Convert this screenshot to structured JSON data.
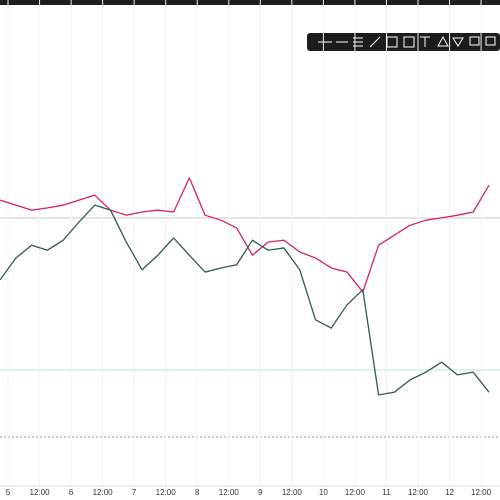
{
  "chart_data": {
    "type": "line",
    "x": [
      4.875,
      5.125,
      5.375,
      5.625,
      5.875,
      6.125,
      6.375,
      6.625,
      6.875,
      7.125,
      7.375,
      7.625,
      7.875,
      8.125,
      8.375,
      8.625,
      8.875,
      9.125,
      9.375,
      9.625,
      9.875,
      10.125,
      10.375,
      10.625,
      10.875,
      11.125,
      11.375,
      11.625,
      11.875,
      12.125,
      12.375,
      12.625
    ],
    "series": [
      {
        "color": "#d6245f",
        "values": [
          62.6,
          61.5,
          60.4,
          60.9,
          61.5,
          62.6,
          63.7,
          60.4,
          59.3,
          60.0,
          60.4,
          60.0,
          67.5,
          59.3,
          58.2,
          56.5,
          50.5,
          53.4,
          53.8,
          51.2,
          49.9,
          47.7,
          46.8,
          42.4,
          52.7,
          54.9,
          57.1,
          58.2,
          58.7,
          59.3,
          60.0,
          65.9
        ]
      },
      {
        "color": "#2f5d4a",
        "values": [
          45.1,
          49.9,
          52.7,
          51.6,
          53.8,
          57.8,
          61.5,
          60.4,
          53.4,
          47.3,
          50.5,
          54.3,
          50.5,
          46.8,
          47.7,
          48.4,
          53.8,
          51.6,
          52.1,
          47.3,
          36.3,
          34.5,
          39.6,
          42.9,
          19.8,
          20.4,
          23.1,
          24.8,
          27.0,
          24.2,
          24.8,
          20.4
        ]
      }
    ],
    "xlim": [
      4.873,
      12.8
    ],
    "ylim": [
      0,
      100
    ],
    "xticks": [
      {
        "value": 5,
        "label": "5"
      },
      {
        "value": 5.5,
        "label": "12:00"
      },
      {
        "value": 6,
        "label": "6"
      },
      {
        "value": 6.5,
        "label": "12:00"
      },
      {
        "value": 7,
        "label": "7"
      },
      {
        "value": 7.5,
        "label": "12:00"
      },
      {
        "value": 8,
        "label": "8"
      },
      {
        "value": 8.5,
        "label": "12:00"
      },
      {
        "value": 9,
        "label": "9"
      },
      {
        "value": 9.5,
        "label": "12:00"
      },
      {
        "value": 10,
        "label": "10"
      },
      {
        "value": 10.5,
        "label": "12:00"
      },
      {
        "value": 11,
        "label": "11"
      },
      {
        "value": 11.5,
        "label": "12:00"
      },
      {
        "value": 12,
        "label": "12"
      },
      {
        "value": 12.5,
        "label": "12:00"
      }
    ],
    "grid": true
  }
}
